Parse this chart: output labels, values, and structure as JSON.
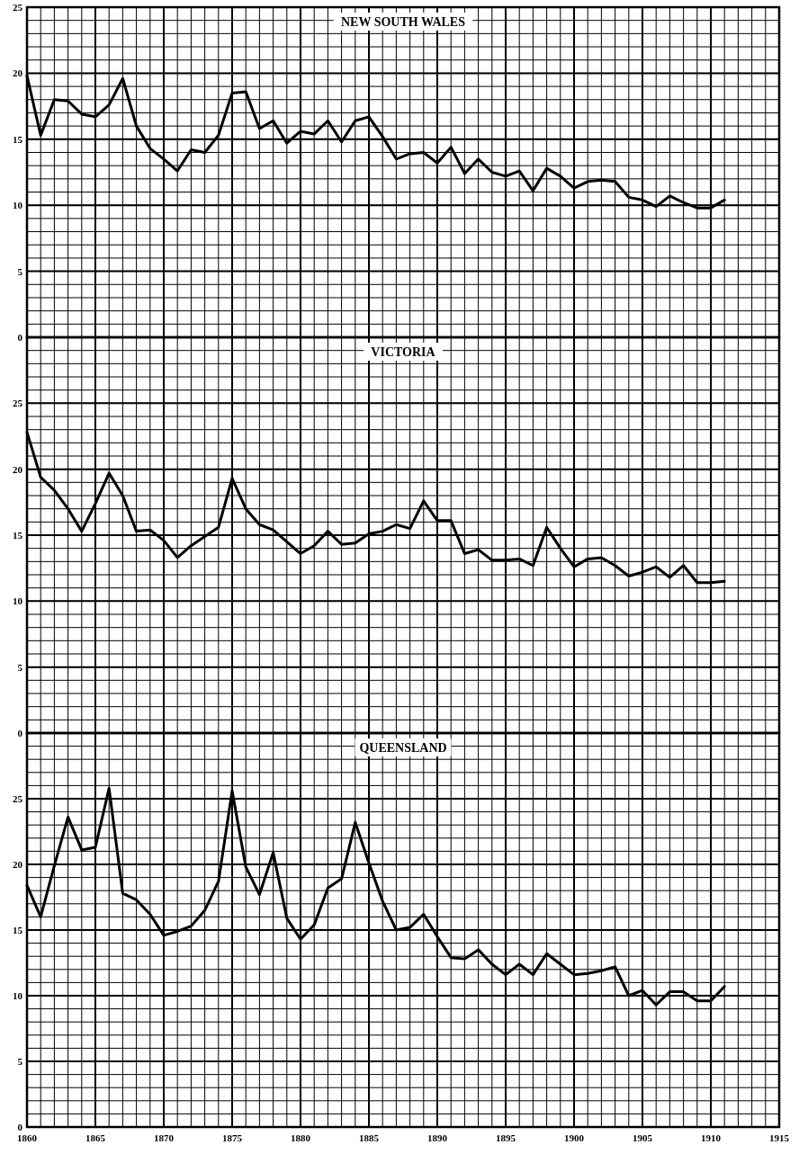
{
  "chart_data": [
    {
      "type": "line",
      "title": "NEW SOUTH WALES",
      "xlim": [
        1860,
        1915
      ],
      "xticks": [
        1860,
        1865,
        1870,
        1875,
        1880,
        1885,
        1890,
        1895,
        1900,
        1905,
        1910,
        1915
      ],
      "ylim": [
        0,
        25
      ],
      "yticks": [
        0,
        5,
        10,
        15,
        20,
        25
      ],
      "grid": true,
      "tick_labels": "y",
      "x": [
        1860,
        1861,
        1862,
        1863,
        1864,
        1865,
        1866,
        1867,
        1868,
        1869,
        1870,
        1871,
        1872,
        1873,
        1874,
        1875,
        1876,
        1877,
        1878,
        1879,
        1880,
        1881,
        1882,
        1883,
        1884,
        1885,
        1886,
        1887,
        1888,
        1889,
        1890,
        1891,
        1892,
        1893,
        1894,
        1895,
        1896,
        1897,
        1898,
        1899,
        1900,
        1901,
        1902,
        1903,
        1904,
        1905,
        1906,
        1907,
        1908,
        1909,
        1910,
        1911
      ],
      "series": [
        {
          "color": "#000000",
          "values": [
            19.8,
            15.3,
            18.0,
            17.9,
            16.9,
            16.7,
            17.6,
            19.6,
            16.0,
            14.3,
            13.5,
            12.6,
            14.2,
            14.0,
            15.3,
            18.5,
            18.6,
            15.8,
            16.4,
            14.7,
            15.6,
            15.4,
            16.4,
            14.8,
            16.4,
            16.7,
            15.2,
            13.5,
            13.9,
            14.0,
            13.2,
            14.4,
            12.4,
            13.5,
            12.5,
            12.2,
            12.6,
            11.1,
            12.8,
            12.2,
            11.3,
            11.8,
            11.9,
            11.8,
            10.6,
            10.4,
            9.9,
            10.7,
            10.2,
            9.8,
            9.8,
            10.4
          ]
        }
      ]
    },
    {
      "type": "line",
      "title": "VICTORIA",
      "xlim": [
        1860,
        1915
      ],
      "xticks": [
        1860,
        1865,
        1870,
        1875,
        1880,
        1885,
        1890,
        1895,
        1900,
        1905,
        1910,
        1915
      ],
      "ylim": [
        0,
        30
      ],
      "yticks": [
        0,
        5,
        10,
        15,
        20,
        25
      ],
      "grid": true,
      "tick_labels": "y",
      "x": [
        1860,
        1861,
        1862,
        1863,
        1864,
        1865,
        1866,
        1867,
        1868,
        1869,
        1870,
        1871,
        1872,
        1873,
        1874,
        1875,
        1876,
        1877,
        1878,
        1879,
        1880,
        1881,
        1882,
        1883,
        1884,
        1885,
        1886,
        1887,
        1888,
        1889,
        1890,
        1891,
        1892,
        1893,
        1894,
        1895,
        1896,
        1897,
        1898,
        1899,
        1900,
        1901,
        1902,
        1903,
        1904,
        1905,
        1906,
        1907,
        1908,
        1909,
        1910,
        1911
      ],
      "series": [
        {
          "color": "#000000",
          "values": [
            22.8,
            19.4,
            18.4,
            17.0,
            15.3,
            17.4,
            19.7,
            18.0,
            15.3,
            15.4,
            14.6,
            13.3,
            14.2,
            14.9,
            15.6,
            19.3,
            17.0,
            15.8,
            15.4,
            14.5,
            13.6,
            14.2,
            15.3,
            14.3,
            14.4,
            15.1,
            15.3,
            15.8,
            15.5,
            17.6,
            16.1,
            16.1,
            13.6,
            13.9,
            13.1,
            13.1,
            13.2,
            12.7,
            15.6,
            14.0,
            12.6,
            13.2,
            13.3,
            12.7,
            11.9,
            12.2,
            12.6,
            11.8,
            12.7,
            11.4,
            11.4,
            11.5
          ]
        }
      ]
    },
    {
      "type": "line",
      "title": "QUEENSLAND",
      "xlim": [
        1860,
        1915
      ],
      "xticks": [
        1860,
        1865,
        1870,
        1875,
        1880,
        1885,
        1890,
        1895,
        1900,
        1905,
        1910,
        1915
      ],
      "ylim": [
        0,
        30
      ],
      "yticks": [
        0,
        5,
        10,
        15,
        20,
        25
      ],
      "grid": true,
      "x": [
        1860,
        1861,
        1862,
        1863,
        1864,
        1865,
        1866,
        1867,
        1868,
        1869,
        1870,
        1871,
        1872,
        1873,
        1874,
        1875,
        1876,
        1877,
        1878,
        1879,
        1880,
        1881,
        1882,
        1883,
        1884,
        1885,
        1886,
        1887,
        1888,
        1889,
        1890,
        1891,
        1892,
        1893,
        1894,
        1895,
        1896,
        1897,
        1898,
        1899,
        1900,
        1901,
        1902,
        1903,
        1904,
        1905,
        1906,
        1907,
        1908,
        1909,
        1910,
        1911
      ],
      "series": [
        {
          "color": "#000000",
          "values": [
            18.4,
            16.0,
            19.9,
            23.6,
            21.1,
            21.3,
            25.8,
            17.8,
            17.3,
            16.2,
            14.6,
            14.9,
            15.3,
            16.5,
            18.7,
            25.6,
            19.8,
            17.7,
            20.9,
            15.9,
            14.3,
            15.4,
            18.2,
            18.9,
            23.2,
            20.1,
            17.2,
            15.0,
            15.2,
            16.2,
            14.5,
            12.9,
            12.8,
            13.5,
            12.4,
            11.6,
            12.4,
            11.6,
            13.2,
            12.4,
            11.6,
            11.7,
            11.9,
            12.2,
            10.0,
            10.4,
            9.3,
            10.3,
            10.3,
            9.6,
            9.6,
            10.7
          ]
        }
      ]
    }
  ]
}
